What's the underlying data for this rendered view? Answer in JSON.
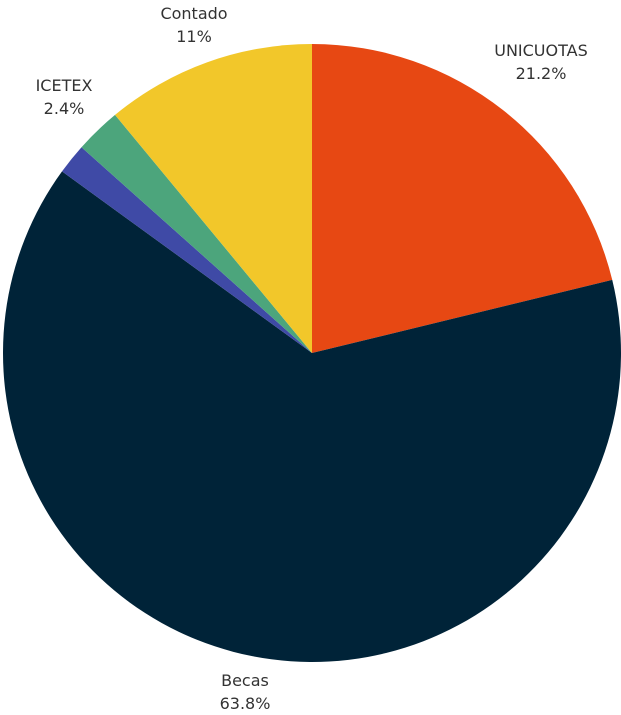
{
  "chart_data": {
    "type": "pie",
    "title": "",
    "slices": [
      {
        "label": "UNICUOTAS",
        "value": 21.2,
        "value_label": "21.2%",
        "color": "#e74813"
      },
      {
        "label": "Becas",
        "value": 63.8,
        "value_label": "63.8%",
        "color": "#002338"
      },
      {
        "label": "",
        "value": 1.6,
        "value_label": "",
        "color": "#3f4aa6"
      },
      {
        "label": "ICETEX",
        "value": 2.4,
        "value_label": "2.4%",
        "color": "#4ca57c"
      },
      {
        "label": "Contado",
        "value": 11,
        "value_label": "11%",
        "color": "#f2c72a"
      }
    ]
  }
}
